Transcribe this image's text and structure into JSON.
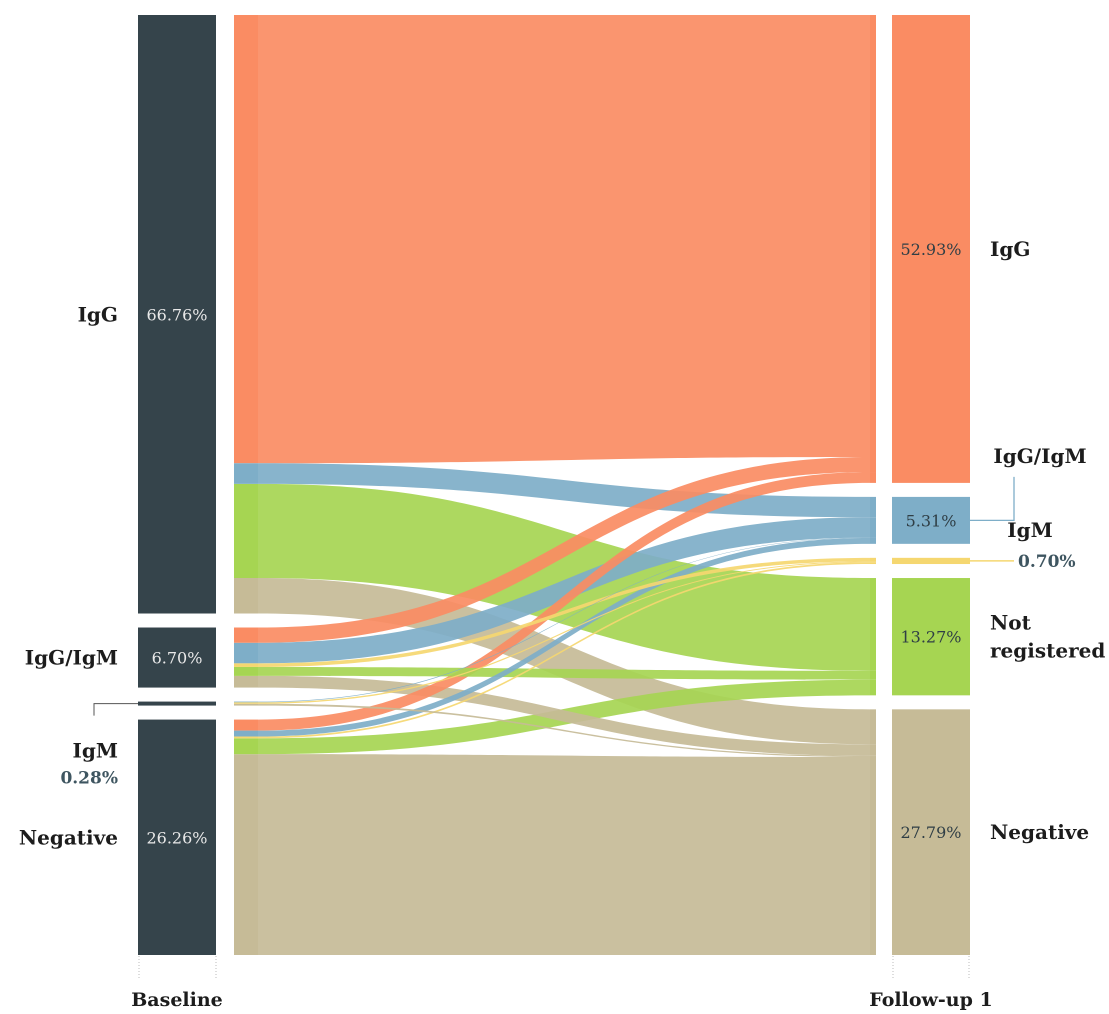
{
  "chart_data": {
    "type": "sankey",
    "stages": [
      {
        "name": "Baseline",
        "nodes": [
          {
            "label": "IgG",
            "pct": "66.76%",
            "value": 66.76
          },
          {
            "label": "IgG/IgM",
            "pct": "6.70%",
            "value": 6.7
          },
          {
            "label": "IgM",
            "pct": "0.28%",
            "value": 0.28
          },
          {
            "label": "Negative",
            "pct": "26.26%",
            "value": 26.26
          }
        ]
      },
      {
        "name": "Follow-up 1",
        "nodes": [
          {
            "label": "IgG",
            "pct": "52.93%",
            "value": 52.93
          },
          {
            "label": "IgG/IgM",
            "pct": "5.31%",
            "value": 5.31
          },
          {
            "label": "IgM",
            "pct": "0.70%",
            "value": 0.7
          },
          {
            "label": "Not registered",
            "label_lines": [
              "Not",
              "registered"
            ],
            "pct": "13.27%",
            "value": 13.27
          },
          {
            "label": "Negative",
            "pct": "27.79%",
            "value": 27.79
          }
        ]
      }
    ],
    "flows": [
      {
        "source": "IgG",
        "target": "IgG",
        "value": 50.0
      },
      {
        "source": "IgG",
        "target": "IgG/IgM",
        "value": 2.3
      },
      {
        "source": "IgG",
        "target": "Not registered",
        "value": 10.5
      },
      {
        "source": "IgG",
        "target": "Negative",
        "value": 3.96
      },
      {
        "source": "IgG/IgM",
        "target": "IgG",
        "value": 1.7
      },
      {
        "source": "IgG/IgM",
        "target": "IgG/IgM",
        "value": 2.3
      },
      {
        "source": "IgG/IgM",
        "target": "IgM",
        "value": 0.4
      },
      {
        "source": "IgG/IgM",
        "target": "Not registered",
        "value": 1.0
      },
      {
        "source": "IgG/IgM",
        "target": "Negative",
        "value": 1.3
      },
      {
        "source": "IgM",
        "target": "IgG/IgM",
        "value": 0.05
      },
      {
        "source": "IgM",
        "target": "IgM",
        "value": 0.1
      },
      {
        "source": "IgM",
        "target": "Negative",
        "value": 0.13
      },
      {
        "source": "Negative",
        "target": "IgG",
        "value": 1.23
      },
      {
        "source": "Negative",
        "target": "IgG/IgM",
        "value": 0.66
      },
      {
        "source": "Negative",
        "target": "IgM",
        "value": 0.2
      },
      {
        "source": "Negative",
        "target": "Not registered",
        "value": 1.77
      },
      {
        "source": "Negative",
        "target": "Negative",
        "value": 22.4
      }
    ],
    "colors": {
      "IgG": "#fa8c63",
      "IgG/IgM": "#7eaec8",
      "IgM": "#f5d770",
      "Not registered": "#a6d552",
      "Negative": "#c6bb97",
      "baseline_bar": "#35444b",
      "outside_pct_text": "#3e5560",
      "inside_pct_text_dark_bar": "#e9e9e9",
      "inside_pct_text_light_bar": "#2f3e45"
    }
  }
}
